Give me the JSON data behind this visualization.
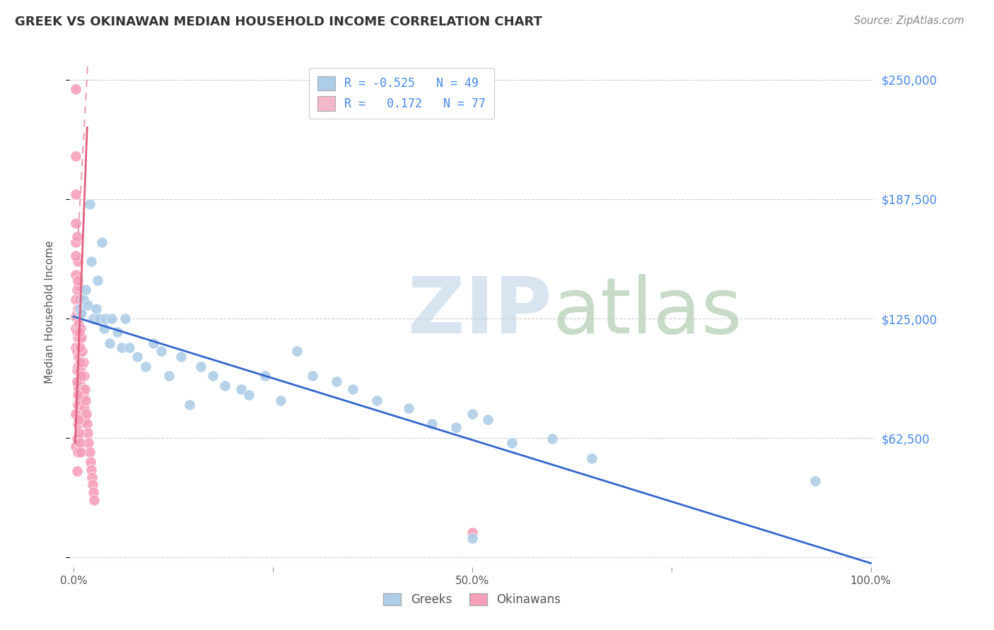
{
  "title": "GREEK VS OKINAWAN MEDIAN HOUSEHOLD INCOME CORRELATION CHART",
  "source": "Source: ZipAtlas.com",
  "ylabel": "Median Household Income",
  "ytick_labels": [
    "$250,000",
    "$187,500",
    "$125,000",
    "$62,500"
  ],
  "ytick_values": [
    250000,
    187500,
    125000,
    62500
  ],
  "xlim": [
    -0.005,
    1.005
  ],
  "ylim": [
    -5000,
    262000
  ],
  "background_color": "#ffffff",
  "legend_greek_color": "#aecde8",
  "legend_okinawan_color": "#f5b8c8",
  "greek_dot_color": "#aecde8",
  "okinawan_dot_color": "#f5a0b8",
  "greek_line_color": "#3366cc",
  "okinawan_line_color": "#e06080",
  "greek_R": -0.525,
  "greek_N": 49,
  "okinawan_R": 0.172,
  "okinawan_N": 77,
  "grid_color": "#cccccc",
  "greek_x": [
    0.008,
    0.01,
    0.012,
    0.015,
    0.018,
    0.02,
    0.022,
    0.025,
    0.028,
    0.03,
    0.032,
    0.035,
    0.038,
    0.04,
    0.045,
    0.048,
    0.055,
    0.06,
    0.065,
    0.07,
    0.08,
    0.09,
    0.1,
    0.11,
    0.12,
    0.135,
    0.145,
    0.16,
    0.175,
    0.19,
    0.21,
    0.22,
    0.24,
    0.26,
    0.28,
    0.3,
    0.33,
    0.35,
    0.38,
    0.42,
    0.45,
    0.48,
    0.5,
    0.52,
    0.55,
    0.6,
    0.65,
    0.93,
    0.5
  ],
  "greek_y": [
    130000,
    128000,
    135000,
    140000,
    132000,
    185000,
    155000,
    125000,
    130000,
    145000,
    125000,
    165000,
    120000,
    125000,
    112000,
    125000,
    118000,
    110000,
    125000,
    110000,
    105000,
    100000,
    112000,
    108000,
    95000,
    105000,
    80000,
    100000,
    95000,
    90000,
    88000,
    85000,
    95000,
    82000,
    108000,
    95000,
    92000,
    88000,
    82000,
    78000,
    70000,
    68000,
    75000,
    72000,
    60000,
    62000,
    52000,
    40000,
    10000
  ],
  "okinawan_x": [
    0.003,
    0.003,
    0.003,
    0.003,
    0.003,
    0.003,
    0.003,
    0.003,
    0.003,
    0.004,
    0.004,
    0.004,
    0.004,
    0.004,
    0.005,
    0.005,
    0.005,
    0.005,
    0.005,
    0.005,
    0.005,
    0.006,
    0.006,
    0.006,
    0.006,
    0.007,
    0.007,
    0.007,
    0.007,
    0.008,
    0.008,
    0.008,
    0.009,
    0.009,
    0.01,
    0.01,
    0.011,
    0.011,
    0.012,
    0.012,
    0.013,
    0.013,
    0.014,
    0.014,
    0.015,
    0.016,
    0.017,
    0.018,
    0.019,
    0.02,
    0.021,
    0.022,
    0.023,
    0.024,
    0.025,
    0.026,
    0.003,
    0.003,
    0.003,
    0.003,
    0.004,
    0.004,
    0.004,
    0.004,
    0.005,
    0.005,
    0.005,
    0.006,
    0.006,
    0.007,
    0.007,
    0.008,
    0.008,
    0.009,
    0.009,
    0.01,
    0.5
  ],
  "okinawan_y": [
    245000,
    210000,
    175000,
    165000,
    148000,
    135000,
    126000,
    120000,
    110000,
    140000,
    128000,
    118000,
    108000,
    98000,
    155000,
    130000,
    115000,
    100000,
    90000,
    80000,
    70000,
    142000,
    122000,
    105000,
    88000,
    135000,
    115000,
    98000,
    82000,
    128000,
    108000,
    92000,
    120000,
    100000,
    115000,
    95000,
    108000,
    88000,
    102000,
    85000,
    95000,
    78000,
    88000,
    72000,
    82000,
    75000,
    70000,
    65000,
    60000,
    55000,
    50000,
    46000,
    42000,
    38000,
    34000,
    30000,
    190000,
    158000,
    75000,
    58000,
    168000,
    92000,
    62000,
    45000,
    145000,
    85000,
    55000,
    130000,
    72000,
    118000,
    65000,
    110000,
    60000,
    102000,
    55000,
    95000,
    13000
  ],
  "greek_line_x0": 0.0,
  "greek_line_y0": 126000,
  "greek_line_x1": 1.0,
  "greek_line_y1": -3000,
  "okin_line_x0": 0.0,
  "okin_line_y0": 90000,
  "okin_line_x1": 0.025,
  "okin_line_y1": 200000,
  "okin_line_ext_x0": 0.0,
  "okin_line_ext_y0": 40000,
  "okin_line_ext_x1": 0.025,
  "okin_line_ext_y1": 250000
}
